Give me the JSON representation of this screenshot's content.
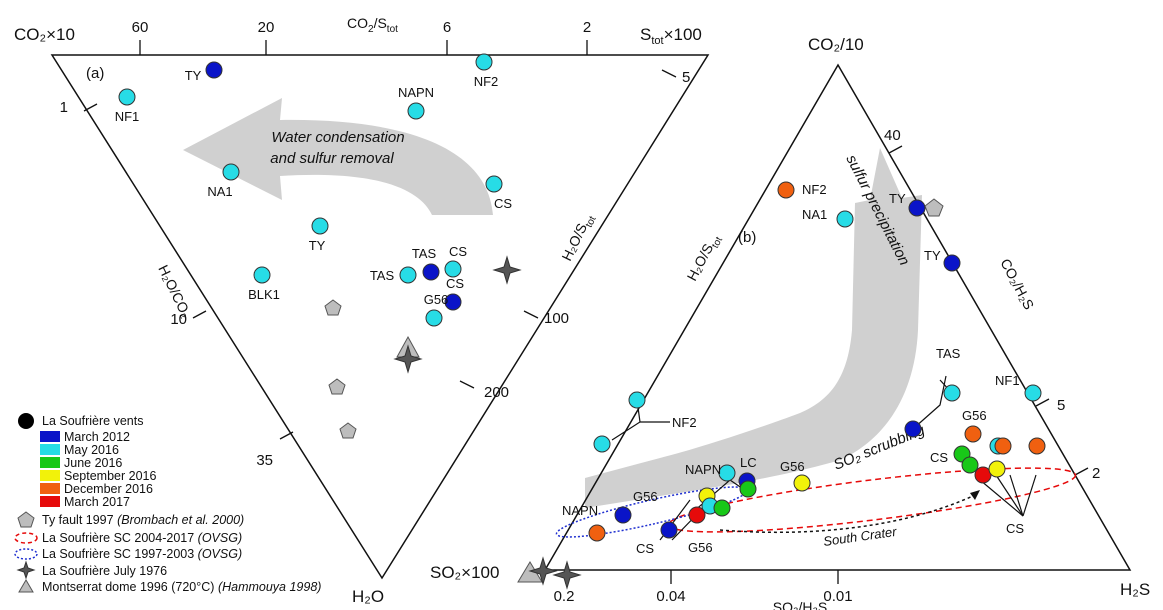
{
  "panel_a": {
    "tag": "(a)",
    "apex_top_left": "CO₂×10",
    "apex_bottom": "H₂O",
    "apex_top_right": "S",
    "apex_top_right_sub": "tot",
    "apex_top_right_suffix": "×100",
    "top_axis_name": "CO",
    "top_axis_sub1": "2",
    "top_axis_mid": "/S",
    "top_axis_sub2": "tot",
    "left_axis_name": "H₂O/CO₂",
    "right_axis_name": "H₂O/S",
    "right_axis_sub": "tot",
    "top_ticks": [
      "60",
      "20",
      "6",
      "2"
    ],
    "left_ticks": [
      "1",
      "10",
      "35"
    ],
    "right_ticks": [
      "5",
      "100",
      "200"
    ],
    "arrow_text_1": "Water condensation",
    "arrow_text_2": "and sulfur removal",
    "labels": [
      "TY",
      "NF2",
      "NAPN",
      "NF1",
      "NA1",
      "CS",
      "TY",
      "TAS",
      "CS",
      "TAS",
      "BLK1",
      "CS",
      "G56"
    ]
  },
  "panel_b": {
    "tag": "(b)",
    "apex_top": "CO₂/10",
    "apex_bottom_left": "SO₂×100",
    "apex_bottom_right": "H₂S",
    "left_axis_name": "H₂O/S",
    "left_axis_sub": "tot",
    "right_axis_name": "CO₂/H₂S",
    "bottom_axis_name": "SO₂/H₂S",
    "right_ticks": [
      "40",
      "5",
      "2"
    ],
    "bottom_ticks": [
      "0.2",
      "0.04",
      "0.01"
    ],
    "arrow_text_1": "sulfur precipitation",
    "arrow_text_2": "SO₂ scrubbing",
    "south_crater": "South Crater",
    "labels": [
      "NF2",
      "NA1",
      "TY",
      "TY",
      "TAS",
      "NF1",
      "G56",
      "CS",
      "CS",
      "NF2",
      "NAPN",
      "LC",
      "G56",
      "G56",
      "NAPN",
      "CS",
      "G56"
    ]
  },
  "legend": {
    "vents": "La Soufrière vents",
    "dates": [
      {
        "label": "March 2012",
        "color": "#0a14c8"
      },
      {
        "label": "May 2016",
        "color": "#27dce6"
      },
      {
        "label": "June 2016",
        "color": "#18c818"
      },
      {
        "label": "September 2016",
        "color": "#f2f20a"
      },
      {
        "label": "December 2016",
        "color": "#f06010"
      },
      {
        "label": "March 2017",
        "color": "#e60a0a"
      }
    ],
    "ty_fault": "Ty fault 1997",
    "ty_fault_ref": "(Brombach et al. 2000)",
    "sc_2004": "La Soufrière SC 2004-2017",
    "sc_2004_ref": "(OVSG)",
    "sc_1997": "La Soufrière SC 1997-2003",
    "sc_1997_ref": "(OVSG)",
    "july_1976": "La Soufrière July 1976",
    "montserrat": "Montserrat dome 1996 (720°C)",
    "montserrat_ref": "(Hammouya 1998)"
  }
}
